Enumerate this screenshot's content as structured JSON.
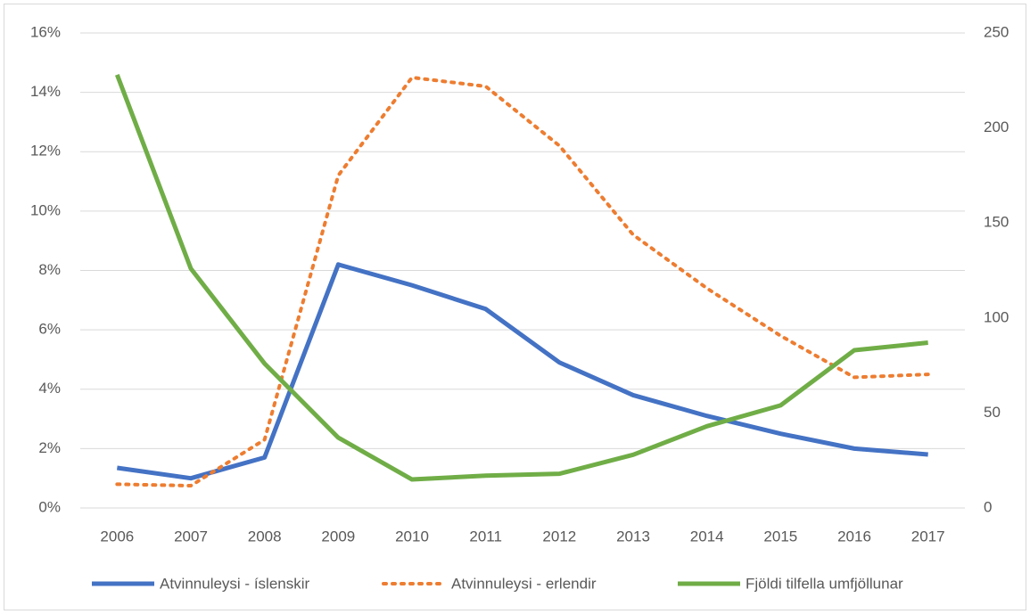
{
  "chart_data": {
    "type": "line",
    "categories": [
      "2006",
      "2007",
      "2008",
      "2009",
      "2010",
      "2011",
      "2012",
      "2013",
      "2014",
      "2015",
      "2016",
      "2017"
    ],
    "series": [
      {
        "name": "Atvinnuleysi - íslenskir",
        "color": "#4472c4",
        "dash": "solid",
        "values": [
          1.35,
          1.0,
          1.7,
          8.2,
          7.5,
          6.7,
          4.9,
          3.8,
          3.1,
          2.5,
          2.0,
          1.8
        ]
      },
      {
        "name": "Atvinnuleysi - erlendir",
        "color": "#ed7d31",
        "dash": "dotted",
        "values": [
          0.8,
          0.75,
          2.3,
          11.2,
          14.5,
          14.2,
          12.2,
          9.2,
          7.4,
          5.8,
          4.4,
          4.5
        ]
      },
      {
        "name": "Fjöldi tilfella umfjöllunar",
        "color": "#70ad47",
        "dash": "solid",
        "axis": "y2",
        "values": [
          228,
          126,
          76,
          37,
          15,
          17,
          18,
          28,
          43,
          54,
          83,
          87
        ]
      }
    ],
    "ylim": [
      0,
      16
    ],
    "yticks": [
      {
        "value": 0,
        "label": "0%"
      },
      {
        "value": 2,
        "label": "2%"
      },
      {
        "value": 4,
        "label": "4%"
      },
      {
        "value": 6,
        "label": "6%"
      },
      {
        "value": 8,
        "label": "8%"
      },
      {
        "value": 10,
        "label": "10%"
      },
      {
        "value": 12,
        "label": "12%"
      },
      {
        "value": 14,
        "label": "14%"
      },
      {
        "value": 16,
        "label": "16%"
      }
    ],
    "y2lim": [
      0,
      250
    ],
    "y2ticks": [
      0,
      50,
      100,
      150,
      200,
      250
    ],
    "grid": true,
    "legend": "bottom"
  }
}
